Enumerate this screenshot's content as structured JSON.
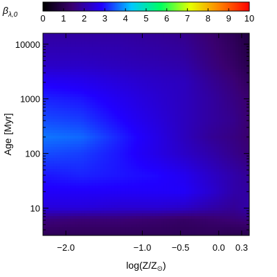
{
  "chart_data": {
    "type": "heatmap",
    "colorbar": {
      "label": "β",
      "label_subscript": "λ,0",
      "range": [
        0,
        10
      ],
      "ticks": [
        "0",
        "1",
        "2",
        "3",
        "4",
        "5",
        "6",
        "7",
        "8",
        "9",
        "10"
      ],
      "colormap": "rainbow (black → purple → blue → cyan → green → yellow → red)",
      "colors": [
        "#000000",
        "#3a0070",
        "#2000ff",
        "#00c8ff",
        "#00ff60",
        "#e6ff00",
        "#ff8000",
        "#ff0000"
      ]
    },
    "xlabel": "log(Z/Z",
    "xlabel_symbol": "⊙",
    "xlabel_close": ")",
    "ylabel": "Age",
    "ylabel_unit": "[Myr]",
    "xlim": [
      -2.3,
      0.4
    ],
    "ylim_log10": [
      0.5,
      4.2
    ],
    "y_scale": "log",
    "x_ticks": [
      -2.0,
      -1.0,
      -0.5,
      0.0,
      0.3
    ],
    "x_tick_labels": [
      "−2.0",
      "−1.0",
      "−0.5",
      "0.0",
      "0.3"
    ],
    "y_ticks": [
      10,
      100,
      1000,
      10000
    ],
    "y_tick_labels": [
      "10",
      "100",
      "1000",
      "10000"
    ],
    "z_grid": {
      "x": [
        -2.3,
        -1.8,
        -1.3,
        -0.8,
        -0.45,
        -0.1,
        0.2,
        0.4
      ],
      "log_age": [
        0.5,
        0.8,
        1.0,
        1.3,
        1.6,
        2.0,
        2.3,
        2.6,
        3.0,
        3.3,
        3.6,
        4.2
      ],
      "values": [
        [
          1.1,
          1.1,
          1.1,
          1.1,
          1.1,
          1.1,
          1.0,
          1.0
        ],
        [
          1.6,
          1.5,
          1.5,
          1.4,
          1.3,
          1.4,
          1.5,
          1.6
        ],
        [
          2.5,
          2.5,
          2.4,
          2.4,
          2.3,
          2.0,
          1.8,
          2.0
        ],
        [
          2.8,
          2.8,
          2.8,
          2.8,
          2.8,
          2.4,
          2.0,
          1.9
        ],
        [
          3.0,
          3.1,
          3.0,
          2.9,
          2.7,
          2.3,
          2.0,
          1.8
        ],
        [
          3.4,
          3.3,
          3.0,
          2.6,
          2.3,
          2.0,
          1.7,
          1.5
        ],
        [
          3.7,
          3.6,
          3.1,
          2.6,
          2.2,
          1.8,
          1.6,
          1.4
        ],
        [
          3.4,
          3.3,
          2.9,
          2.5,
          2.2,
          1.9,
          1.7,
          1.4
        ],
        [
          3.1,
          3.0,
          2.7,
          2.4,
          2.2,
          1.9,
          1.6,
          1.4
        ],
        [
          2.8,
          2.7,
          2.5,
          2.3,
          2.2,
          1.8,
          1.5,
          1.2
        ],
        [
          2.3,
          2.3,
          2.2,
          2.1,
          2.0,
          1.6,
          1.3,
          1.0
        ],
        [
          1.9,
          1.9,
          1.9,
          1.8,
          1.7,
          1.4,
          1.1,
          0.8
        ]
      ]
    }
  }
}
